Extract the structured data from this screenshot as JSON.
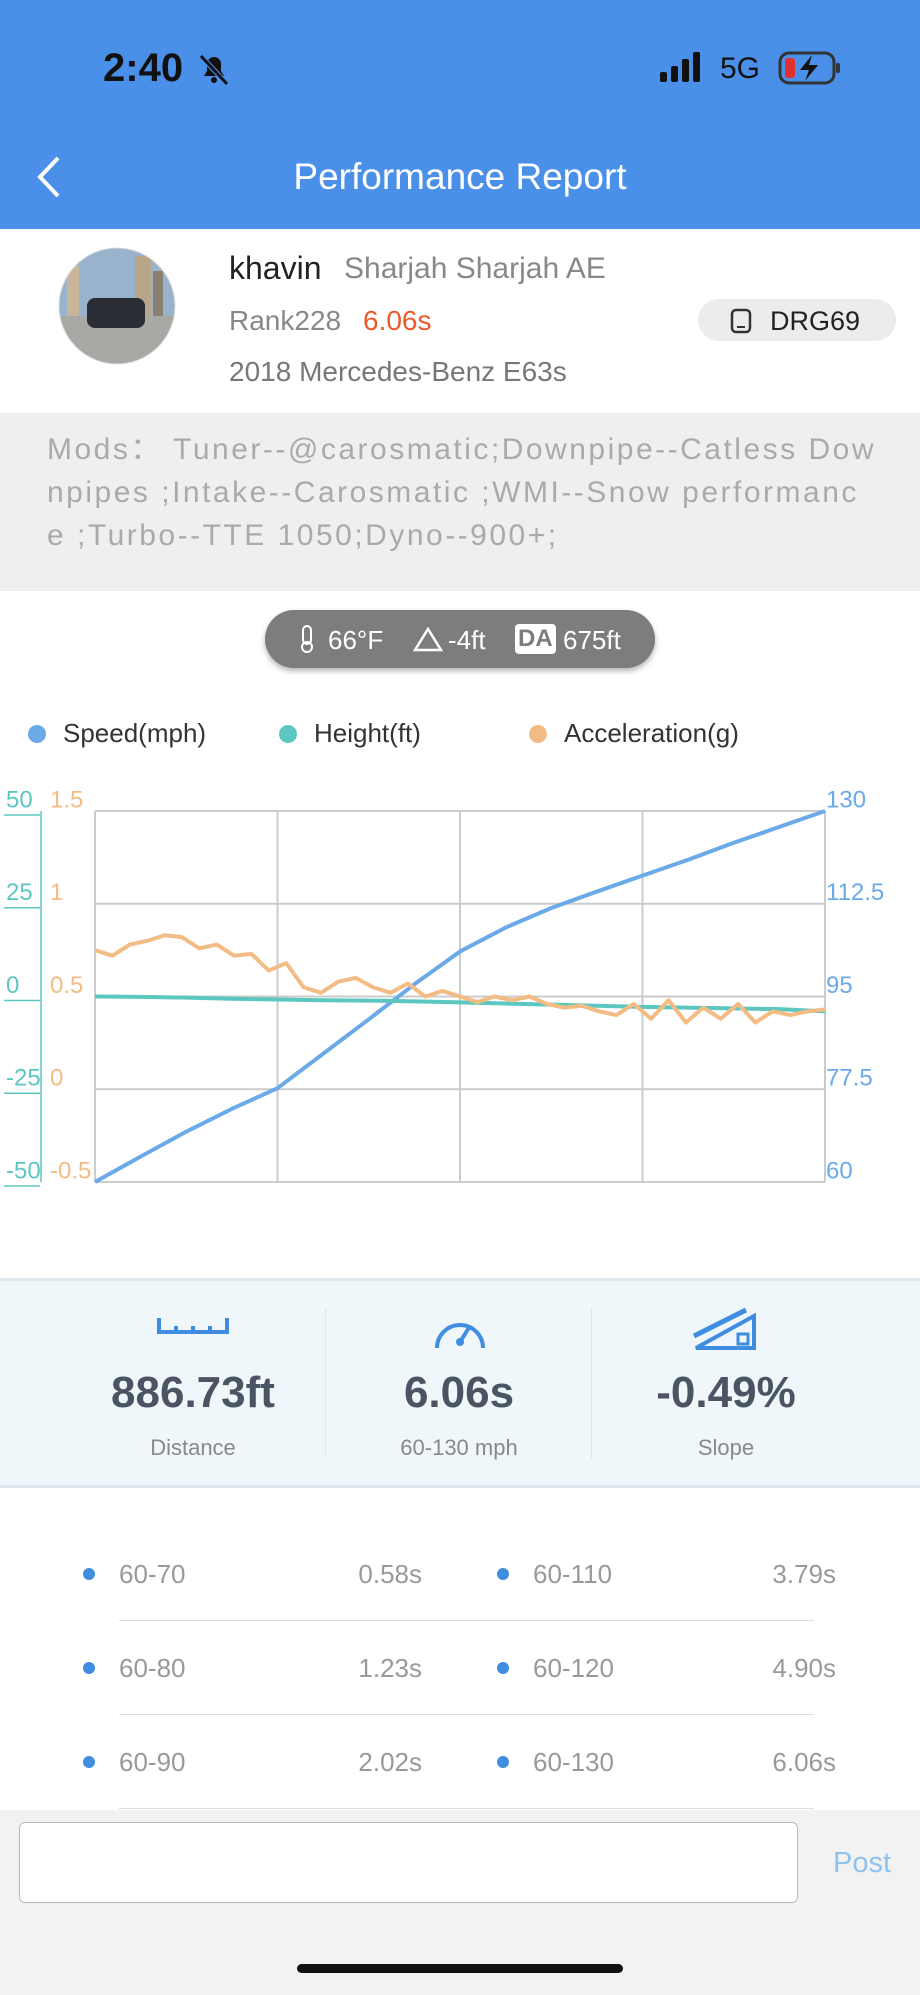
{
  "status_bar": {
    "time": "2:40",
    "network": "5G"
  },
  "header": {
    "title": "Performance Report"
  },
  "profile": {
    "name": "khavin",
    "location": "Sharjah Sharjah AE",
    "rank": "Rank228",
    "time": "6.06s",
    "car": "2018 Mercedes-Benz E63s",
    "device": "DRG69"
  },
  "mods": {
    "text": "Mods：  Tuner--@carosmatic;Downpipe--Catless Downpipes ;Intake--Carosmatic ;WMI--Snow performance ;Turbo--TTE 1050;Dyno--900+;"
  },
  "conditions": {
    "temperature": "66°F",
    "elevation": "-4ft",
    "da_label": "DA",
    "density_altitude": "675ft"
  },
  "chart_data": {
    "type": "line",
    "grid": true,
    "ylim": [
      -50,
      50
    ],
    "yticks": [
      50,
      25,
      0,
      -25,
      -50
    ],
    "y2lim": [
      60,
      130
    ],
    "y2ticks": [
      130,
      112.5,
      95,
      77.5,
      60
    ],
    "y3lim": [
      -0.5,
      1.5
    ],
    "y3ticks": [
      1.5,
      1,
      0.5,
      0,
      -0.5
    ],
    "series": [
      {
        "name": "Speed(mph)",
        "color": "#6aaae8",
        "axis": "y2",
        "values": [
          60,
          64.8,
          69.5,
          73.8,
          77.7,
          84.2,
          90.7,
          97.3,
          103.5,
          108,
          111.7,
          114.8,
          117.8,
          120.8,
          124,
          127,
          130
        ]
      },
      {
        "name": "Height(ft)",
        "color": "#5cc7c0",
        "axis": "y",
        "values": [
          0,
          -0.1,
          -0.3,
          -0.6,
          -0.8,
          -1,
          -1.1,
          -1.3,
          -1.6,
          -1.9,
          -2.2,
          -2.5,
          -2.8,
          -3,
          -3.2,
          -3.4,
          -4
        ]
      },
      {
        "name": "Acceleration(g)",
        "color": "#f3bc84",
        "axis": "y3",
        "values": [
          0.75,
          0.72,
          0.78,
          0.8,
          0.83,
          0.82,
          0.76,
          0.78,
          0.72,
          0.73,
          0.64,
          0.68,
          0.55,
          0.52,
          0.58,
          0.6,
          0.55,
          0.52,
          0.57,
          0.5,
          0.53,
          0.5,
          0.47,
          0.5,
          0.48,
          0.5,
          0.46,
          0.44,
          0.45,
          0.42,
          0.4,
          0.46,
          0.38,
          0.48,
          0.36,
          0.44,
          0.38,
          0.46,
          0.36,
          0.42,
          0.4,
          0.42,
          0.43
        ]
      }
    ]
  },
  "stats": [
    {
      "value": "886.73ft",
      "label": "Distance"
    },
    {
      "value": "6.06s",
      "label": "60-130 mph"
    },
    {
      "value": "-0.49%",
      "label": "Slope"
    }
  ],
  "splits": [
    [
      {
        "range": "60-70",
        "time": "0.58s"
      },
      {
        "range": "60-110",
        "time": "3.79s"
      }
    ],
    [
      {
        "range": "60-80",
        "time": "1.23s"
      },
      {
        "range": "60-120",
        "time": "4.90s"
      }
    ],
    [
      {
        "range": "60-90",
        "time": "2.02s"
      },
      {
        "range": "60-130",
        "time": "6.06s"
      }
    ]
  ],
  "comment": {
    "button": "Post"
  }
}
